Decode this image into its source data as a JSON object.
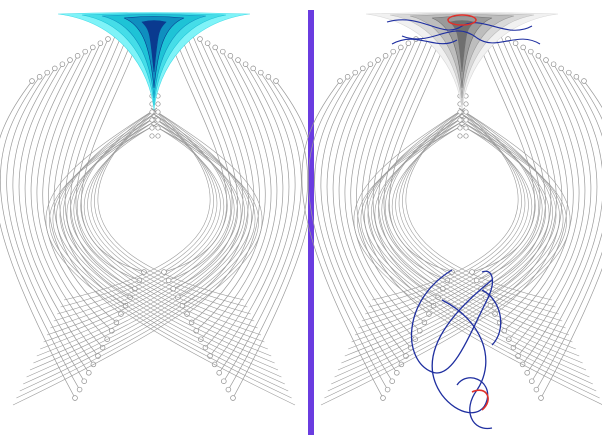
{
  "figure": {
    "panels": [
      {
        "id": "left",
        "fan_style": "cyan-stack",
        "overlay": "none"
      },
      {
        "id": "right",
        "fan_style": "gray-stack",
        "overlay": "blue-red-scribbles"
      }
    ],
    "colors": {
      "background": "#ffffff",
      "divider": "#6a3ce0",
      "curve_stroke": "#9b9b9b",
      "node_fill": "#ffffff",
      "node_stroke": "#8e8e8e",
      "cyan_fan": [
        "#7ff3f8",
        "#45dde8",
        "#1ec3d6",
        "#0f8fbf",
        "#0a3a8f"
      ],
      "gray_fan": [
        "#f1f1f1",
        "#d9d9d9",
        "#bdbdbd",
        "#9a9a9a",
        "#6f6f6f"
      ],
      "scribble_blue": "#1f2fa0",
      "scribble_red": "#e0302a"
    }
  }
}
